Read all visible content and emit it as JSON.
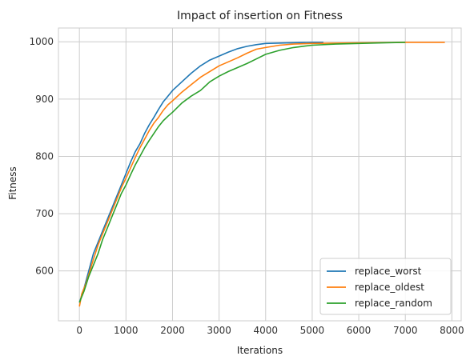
{
  "chart_data": {
    "type": "line",
    "title": "Impact of insertion on Fitness",
    "xlabel": "Iterations",
    "ylabel": "Fitness",
    "xlim": [
      -450,
      8200
    ],
    "ylim": [
      513,
      1024
    ],
    "xticks": [
      0,
      1000,
      2000,
      3000,
      4000,
      5000,
      6000,
      7000,
      8000
    ],
    "yticks": [
      600,
      700,
      800,
      900,
      1000
    ],
    "grid": true,
    "legend_position": "bottom-right",
    "series": [
      {
        "name": "replace_worst",
        "color": "#1f77b4",
        "points": [
          [
            0,
            545
          ],
          [
            100,
            570
          ],
          [
            200,
            600
          ],
          [
            300,
            630
          ],
          [
            400,
            650
          ],
          [
            500,
            670
          ],
          [
            600,
            690
          ],
          [
            700,
            710
          ],
          [
            800,
            730
          ],
          [
            900,
            750
          ],
          [
            1000,
            770
          ],
          [
            1100,
            790
          ],
          [
            1200,
            808
          ],
          [
            1300,
            822
          ],
          [
            1400,
            840
          ],
          [
            1500,
            855
          ],
          [
            1600,
            868
          ],
          [
            1700,
            882
          ],
          [
            1800,
            895
          ],
          [
            1900,
            905
          ],
          [
            2000,
            915
          ],
          [
            2200,
            930
          ],
          [
            2400,
            945
          ],
          [
            2600,
            958
          ],
          [
            2800,
            968
          ],
          [
            3000,
            975
          ],
          [
            3200,
            982
          ],
          [
            3400,
            988
          ],
          [
            3600,
            992
          ],
          [
            3800,
            995
          ],
          [
            4000,
            997
          ],
          [
            4500,
            998
          ],
          [
            5000,
            999
          ],
          [
            5240,
            999
          ]
        ]
      },
      {
        "name": "replace_oldest",
        "color": "#ff7f0e",
        "points": [
          [
            0,
            538
          ],
          [
            50,
            560
          ],
          [
            150,
            580
          ],
          [
            300,
            620
          ],
          [
            400,
            645
          ],
          [
            500,
            665
          ],
          [
            600,
            685
          ],
          [
            700,
            705
          ],
          [
            800,
            725
          ],
          [
            900,
            745
          ],
          [
            1000,
            762
          ],
          [
            1100,
            780
          ],
          [
            1200,
            798
          ],
          [
            1300,
            815
          ],
          [
            1400,
            830
          ],
          [
            1500,
            845
          ],
          [
            1600,
            858
          ],
          [
            1700,
            868
          ],
          [
            1800,
            880
          ],
          [
            1900,
            890
          ],
          [
            2000,
            897
          ],
          [
            2200,
            912
          ],
          [
            2400,
            925
          ],
          [
            2600,
            938
          ],
          [
            2800,
            948
          ],
          [
            3000,
            958
          ],
          [
            3200,
            965
          ],
          [
            3400,
            972
          ],
          [
            3600,
            980
          ],
          [
            3800,
            987
          ],
          [
            4000,
            990
          ],
          [
            4300,
            994
          ],
          [
            4600,
            996
          ],
          [
            5000,
            997
          ],
          [
            6000,
            998
          ],
          [
            7000,
            999
          ],
          [
            7850,
            999
          ]
        ]
      },
      {
        "name": "replace_random",
        "color": "#2ca02c",
        "points": [
          [
            0,
            545
          ],
          [
            100,
            565
          ],
          [
            200,
            590
          ],
          [
            300,
            610
          ],
          [
            400,
            630
          ],
          [
            500,
            655
          ],
          [
            600,
            675
          ],
          [
            700,
            695
          ],
          [
            800,
            715
          ],
          [
            900,
            735
          ],
          [
            1000,
            750
          ],
          [
            1100,
            768
          ],
          [
            1200,
            785
          ],
          [
            1300,
            800
          ],
          [
            1400,
            815
          ],
          [
            1500,
            828
          ],
          [
            1600,
            840
          ],
          [
            1700,
            852
          ],
          [
            1800,
            862
          ],
          [
            1900,
            870
          ],
          [
            2000,
            877
          ],
          [
            2200,
            893
          ],
          [
            2400,
            905
          ],
          [
            2600,
            915
          ],
          [
            2800,
            930
          ],
          [
            3000,
            940
          ],
          [
            3200,
            948
          ],
          [
            3400,
            955
          ],
          [
            3600,
            962
          ],
          [
            3800,
            970
          ],
          [
            4000,
            978
          ],
          [
            4300,
            985
          ],
          [
            4600,
            990
          ],
          [
            5000,
            994
          ],
          [
            5500,
            996
          ],
          [
            6000,
            997
          ],
          [
            6500,
            998
          ],
          [
            7000,
            999
          ]
        ]
      }
    ]
  }
}
